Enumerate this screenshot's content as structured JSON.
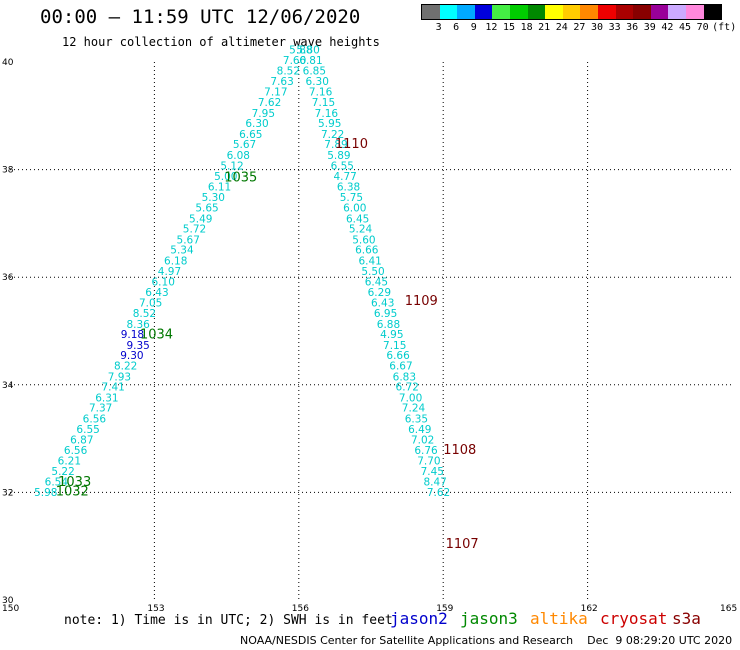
{
  "header": {
    "title": "00:00 – 11:59 UTC 12/06/2020",
    "subtitle": "12 hour collection of altimeter wave heights"
  },
  "colorbar": {
    "colors": [
      "#707070",
      "#00ffff",
      "#00aaff",
      "#0000dd",
      "#44ee44",
      "#00cc00",
      "#008800",
      "#ffff00",
      "#ffcc00",
      "#ff8800",
      "#ee0000",
      "#aa0000",
      "#880000",
      "#990099",
      "#ccaaff",
      "#ff88dd",
      "#000000"
    ],
    "labels": [
      "3",
      "6",
      "9",
      "12",
      "15",
      "18",
      "21",
      "24",
      "27",
      "30",
      "33",
      "36",
      "39",
      "42",
      "45",
      "70"
    ],
    "unit": "(ft)"
  },
  "map": {
    "lon_ticks": [
      "150",
      "153",
      "156",
      "159",
      "162",
      "165"
    ],
    "lat_ticks": [
      "30",
      "32",
      "34",
      "36",
      "38",
      "40"
    ],
    "tracks": [
      {
        "satellite": "jason3",
        "color": "#00cccc",
        "points": [
          {
            "lon": 150.5,
            "lat": 31.93,
            "v": "5.98"
          },
          {
            "lon": 150.72,
            "lat": 32.13,
            "v": "6.54"
          },
          {
            "lon": 150.86,
            "lat": 32.32,
            "v": "5.22"
          },
          {
            "lon": 150.99,
            "lat": 32.52,
            "v": "6.21"
          },
          {
            "lon": 151.12,
            "lat": 32.71,
            "v": "6.56"
          },
          {
            "lon": 151.25,
            "lat": 32.91,
            "v": "6.87"
          },
          {
            "lon": 151.38,
            "lat": 33.1,
            "v": "6.55"
          },
          {
            "lon": 151.51,
            "lat": 33.3,
            "v": "6.56"
          },
          {
            "lon": 151.64,
            "lat": 33.5,
            "v": "7.37"
          },
          {
            "lon": 151.77,
            "lat": 33.69,
            "v": "6.31"
          },
          {
            "lon": 151.9,
            "lat": 33.89,
            "v": "7.41"
          },
          {
            "lon": 152.03,
            "lat": 34.08,
            "v": "7.93"
          },
          {
            "lon": 152.16,
            "lat": 34.28,
            "v": "8.22"
          },
          {
            "lon": 152.29,
            "lat": 34.48,
            "v": "9.30",
            "c": "#0000cc"
          },
          {
            "lon": 152.42,
            "lat": 34.67,
            "v": "9.35",
            "c": "#0000cc"
          },
          {
            "lon": 152.3,
            "lat": 34.87,
            "v": "9.18",
            "c": "#0000cc"
          },
          {
            "lon": 152.42,
            "lat": 35.06,
            "v": "8.36"
          },
          {
            "lon": 152.55,
            "lat": 35.26,
            "v": "8.52"
          },
          {
            "lon": 152.68,
            "lat": 35.46,
            "v": "7.05"
          },
          {
            "lon": 152.81,
            "lat": 35.65,
            "v": "6.43"
          },
          {
            "lon": 152.94,
            "lat": 35.85,
            "v": "6.10"
          },
          {
            "lon": 153.07,
            "lat": 36.04,
            "v": "4.97"
          },
          {
            "lon": 153.2,
            "lat": 36.24,
            "v": "6.18"
          },
          {
            "lon": 153.33,
            "lat": 36.44,
            "v": "5.34"
          },
          {
            "lon": 153.46,
            "lat": 36.63,
            "v": "5.67"
          },
          {
            "lon": 153.59,
            "lat": 36.83,
            "v": "5.72"
          },
          {
            "lon": 153.72,
            "lat": 37.02,
            "v": "5.49"
          },
          {
            "lon": 153.85,
            "lat": 37.22,
            "v": "5.65"
          },
          {
            "lon": 153.98,
            "lat": 37.42,
            "v": "5.30"
          },
          {
            "lon": 154.11,
            "lat": 37.61,
            "v": "6.11"
          },
          {
            "lon": 154.24,
            "lat": 37.81,
            "v": "5.00"
          },
          {
            "lon": 154.37,
            "lat": 38.0,
            "v": "5.12"
          },
          {
            "lon": 154.5,
            "lat": 38.2,
            "v": "6.08"
          },
          {
            "lon": 154.63,
            "lat": 38.4,
            "v": "5.67"
          },
          {
            "lon": 154.76,
            "lat": 38.59,
            "v": "6.65"
          },
          {
            "lon": 154.89,
            "lat": 38.79,
            "v": "6.30"
          },
          {
            "lon": 155.02,
            "lat": 38.98,
            "v": "7.95"
          },
          {
            "lon": 155.15,
            "lat": 39.18,
            "v": "7.62"
          },
          {
            "lon": 155.28,
            "lat": 39.38,
            "v": "7.17"
          },
          {
            "lon": 155.41,
            "lat": 39.57,
            "v": "7.63"
          },
          {
            "lon": 155.54,
            "lat": 39.77,
            "v": "8.52"
          },
          {
            "lon": 155.67,
            "lat": 39.96,
            "v": "7.60"
          },
          {
            "lon": 155.8,
            "lat": 40.16,
            "v": "5.88"
          }
        ]
      },
      {
        "satellite": "jason3",
        "color": "#00cccc",
        "points": [
          {
            "lon": 155.95,
            "lat": 40.16,
            "v": "5.80"
          },
          {
            "lon": 156.01,
            "lat": 39.96,
            "v": "6.81"
          },
          {
            "lon": 156.08,
            "lat": 39.77,
            "v": "6.85"
          },
          {
            "lon": 156.14,
            "lat": 39.57,
            "v": "6.30"
          },
          {
            "lon": 156.21,
            "lat": 39.38,
            "v": "7.16"
          },
          {
            "lon": 156.27,
            "lat": 39.18,
            "v": "7.15"
          },
          {
            "lon": 156.33,
            "lat": 38.98,
            "v": "7.16"
          },
          {
            "lon": 156.4,
            "lat": 38.79,
            "v": "5.95"
          },
          {
            "lon": 156.46,
            "lat": 38.59,
            "v": "7.22"
          },
          {
            "lon": 156.53,
            "lat": 38.4,
            "v": "7.89"
          },
          {
            "lon": 156.59,
            "lat": 38.2,
            "v": "5.89"
          },
          {
            "lon": 156.66,
            "lat": 38.0,
            "v": "6.55"
          },
          {
            "lon": 156.72,
            "lat": 37.81,
            "v": "4.77"
          },
          {
            "lon": 156.79,
            "lat": 37.61,
            "v": "6.38"
          },
          {
            "lon": 156.85,
            "lat": 37.42,
            "v": "5.75"
          },
          {
            "lon": 156.92,
            "lat": 37.22,
            "v": "6.00"
          },
          {
            "lon": 156.98,
            "lat": 37.02,
            "v": "6.45"
          },
          {
            "lon": 157.04,
            "lat": 36.83,
            "v": "5.24"
          },
          {
            "lon": 157.11,
            "lat": 36.63,
            "v": "5.60"
          },
          {
            "lon": 157.17,
            "lat": 36.44,
            "v": "6.66"
          },
          {
            "lon": 157.24,
            "lat": 36.24,
            "v": "6.41"
          },
          {
            "lon": 157.3,
            "lat": 36.04,
            "v": "5.50"
          },
          {
            "lon": 157.37,
            "lat": 35.85,
            "v": "6.45"
          },
          {
            "lon": 157.43,
            "lat": 35.65,
            "v": "6.29"
          },
          {
            "lon": 157.5,
            "lat": 35.46,
            "v": "6.43"
          },
          {
            "lon": 157.56,
            "lat": 35.26,
            "v": "6.95"
          },
          {
            "lon": 157.62,
            "lat": 35.06,
            "v": "6.88"
          },
          {
            "lon": 157.69,
            "lat": 34.87,
            "v": "4.95"
          },
          {
            "lon": 157.75,
            "lat": 34.67,
            "v": "7.15"
          },
          {
            "lon": 157.82,
            "lat": 34.48,
            "v": "6.66"
          },
          {
            "lon": 157.88,
            "lat": 34.28,
            "v": "6.67"
          },
          {
            "lon": 157.95,
            "lat": 34.08,
            "v": "6.83"
          },
          {
            "lon": 158.01,
            "lat": 33.89,
            "v": "6.72"
          },
          {
            "lon": 158.08,
            "lat": 33.69,
            "v": "7.00"
          },
          {
            "lon": 158.14,
            "lat": 33.5,
            "v": "7.24"
          },
          {
            "lon": 158.2,
            "lat": 33.3,
            "v": "6.35"
          },
          {
            "lon": 158.27,
            "lat": 33.1,
            "v": "6.49"
          },
          {
            "lon": 158.33,
            "lat": 32.91,
            "v": "7.02"
          },
          {
            "lon": 158.4,
            "lat": 32.71,
            "v": "6.76"
          },
          {
            "lon": 158.46,
            "lat": 32.52,
            "v": "7.70"
          },
          {
            "lon": 158.53,
            "lat": 32.32,
            "v": "7.45"
          },
          {
            "lon": 158.59,
            "lat": 32.13,
            "v": "8.47"
          },
          {
            "lon": 158.66,
            "lat": 31.93,
            "v": "7.62"
          }
        ]
      }
    ],
    "passes": [
      {
        "id": "1035",
        "lon": 154.45,
        "lat": 37.78,
        "color": "#007700"
      },
      {
        "id": "1034",
        "lon": 152.7,
        "lat": 34.86,
        "color": "#007700"
      },
      {
        "id": "1033",
        "lon": 151.0,
        "lat": 32.12,
        "color": "#007700"
      },
      {
        "id": "1032",
        "lon": 150.95,
        "lat": 31.94,
        "color": "#007700"
      },
      {
        "id": "1110",
        "lon": 156.75,
        "lat": 38.4,
        "color": "#770000"
      },
      {
        "id": "1109",
        "lon": 158.2,
        "lat": 35.48,
        "color": "#770000"
      },
      {
        "id": "1108",
        "lon": 159.0,
        "lat": 32.71,
        "color": "#770000"
      },
      {
        "id": "1107",
        "lon": 159.05,
        "lat": 30.97,
        "color": "#770000"
      }
    ]
  },
  "footer": {
    "note": "note: 1) Time is in UTC; 2) SWH is in feet",
    "legend": [
      {
        "name": "jason2",
        "color": "#0000cc"
      },
      {
        "name": "jason3",
        "color": "#008800"
      },
      {
        "name": "altika",
        "color": "#ff8800"
      },
      {
        "name": "cryosat",
        "color": "#cc0000"
      },
      {
        "name": "s3a",
        "color": "#880000"
      }
    ],
    "credit": "NOAA/NESDIS Center for Satellite Applications and Research    Dec  9 08:29:20 UTC 2020"
  }
}
